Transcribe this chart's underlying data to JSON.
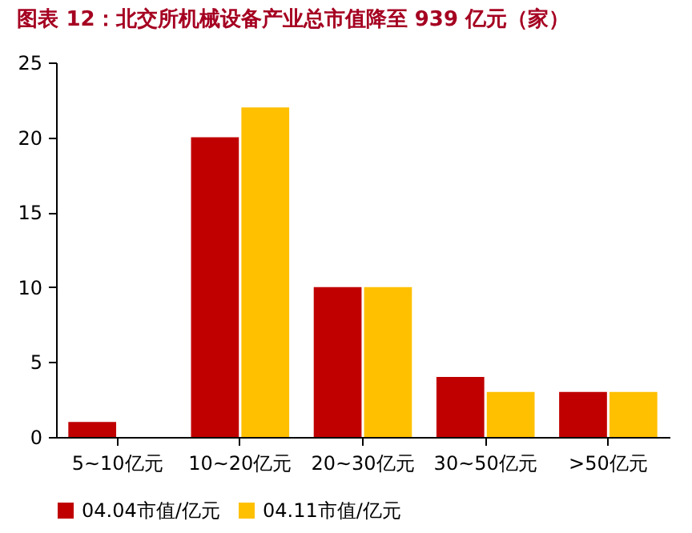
{
  "chart_data": {
    "type": "bar",
    "title": "图表 12：北交所机械设备产业总市值降至 939 亿元（家）",
    "categories": [
      "5~10亿元",
      "10~20亿元",
      "20~30亿元",
      "30~50亿元",
      ">50亿元"
    ],
    "series": [
      {
        "name": "04.04市值/亿元",
        "color": "#c00000",
        "values": [
          1,
          20,
          10,
          4,
          3
        ]
      },
      {
        "name": "04.11市值/亿元",
        "color": "#ffc000",
        "values": [
          0,
          22,
          10,
          3,
          3
        ]
      }
    ],
    "ylim": [
      0,
      25
    ],
    "yticks": [
      0,
      5,
      10,
      15,
      20,
      25
    ],
    "grid": false,
    "legend": "bottom"
  }
}
